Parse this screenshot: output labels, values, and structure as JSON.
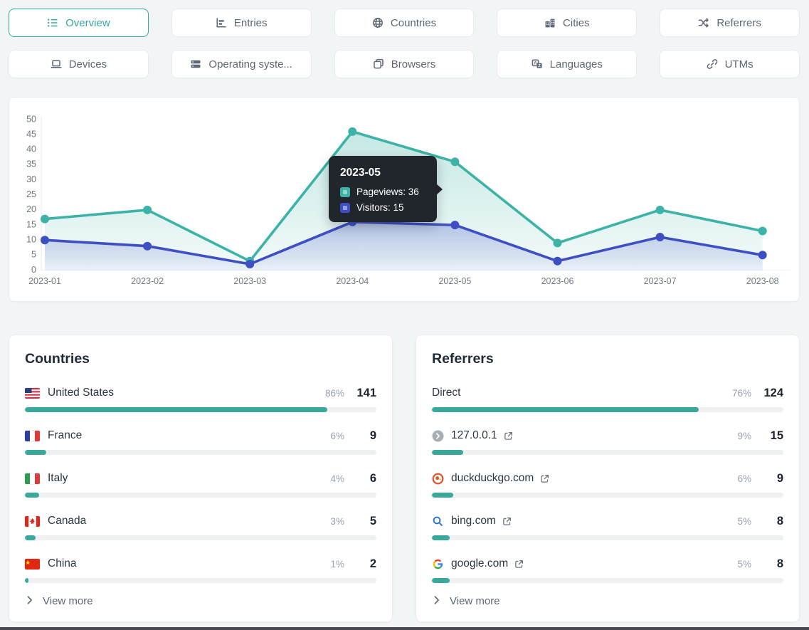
{
  "accent_color": "#3aa99e",
  "tabs": [
    {
      "label": "Overview",
      "icon": "list",
      "active": true
    },
    {
      "label": "Entries",
      "icon": "entries",
      "active": false
    },
    {
      "label": "Countries",
      "icon": "globe",
      "active": false
    },
    {
      "label": "Cities",
      "icon": "city",
      "active": false
    },
    {
      "label": "Referrers",
      "icon": "shuffle",
      "active": false
    },
    {
      "label": "Devices",
      "icon": "laptop",
      "active": false
    },
    {
      "label": "Operating syste...",
      "icon": "server",
      "active": false
    },
    {
      "label": "Browsers",
      "icon": "windows",
      "active": false
    },
    {
      "label": "Languages",
      "icon": "translate",
      "active": false
    },
    {
      "label": "UTMs",
      "icon": "link",
      "active": false
    }
  ],
  "chart_data": {
    "type": "line",
    "x": [
      "2023-01",
      "2023-02",
      "2023-03",
      "2023-04",
      "2023-05",
      "2023-06",
      "2023-07",
      "2023-08"
    ],
    "series": [
      {
        "name": "Pageviews",
        "color": "#3cb3a6",
        "values": [
          17,
          20,
          3,
          46,
          36,
          9,
          20,
          13
        ]
      },
      {
        "name": "Visitors",
        "color": "#3e4fc4",
        "values": [
          10,
          8,
          2,
          16,
          15,
          3,
          11,
          5
        ]
      }
    ],
    "ylim": [
      0,
      50
    ],
    "ytick_step": 5,
    "grid": false,
    "legend": "none",
    "tooltip": {
      "title": "2023-05",
      "x_index": 4,
      "rows": [
        {
          "label": "Pageviews",
          "value": "36"
        },
        {
          "label": "Visitors",
          "value": "15"
        }
      ]
    }
  },
  "countries": {
    "title": "Countries",
    "view_more": "View more",
    "rows": [
      {
        "flag": "us",
        "name": "United States",
        "pct": "86%",
        "count": "141"
      },
      {
        "flag": "fr",
        "name": "France",
        "pct": "6%",
        "count": "9"
      },
      {
        "flag": "it",
        "name": "Italy",
        "pct": "4%",
        "count": "6"
      },
      {
        "flag": "ca",
        "name": "Canada",
        "pct": "3%",
        "count": "5"
      },
      {
        "flag": "cn",
        "name": "China",
        "pct": "1%",
        "count": "2"
      }
    ]
  },
  "referrers": {
    "title": "Referrers",
    "view_more": "View more",
    "rows": [
      {
        "icon": "direct",
        "name": "Direct",
        "pct": "76%",
        "count": "124",
        "external": false
      },
      {
        "icon": "localhost",
        "name": "127.0.0.1",
        "pct": "9%",
        "count": "15",
        "external": true
      },
      {
        "icon": "duckduckgo",
        "name": "duckduckgo.com",
        "pct": "6%",
        "count": "9",
        "external": true
      },
      {
        "icon": "bing",
        "name": "bing.com",
        "pct": "5%",
        "count": "8",
        "external": true
      },
      {
        "icon": "google",
        "name": "google.com",
        "pct": "5%",
        "count": "8",
        "external": true
      }
    ]
  }
}
